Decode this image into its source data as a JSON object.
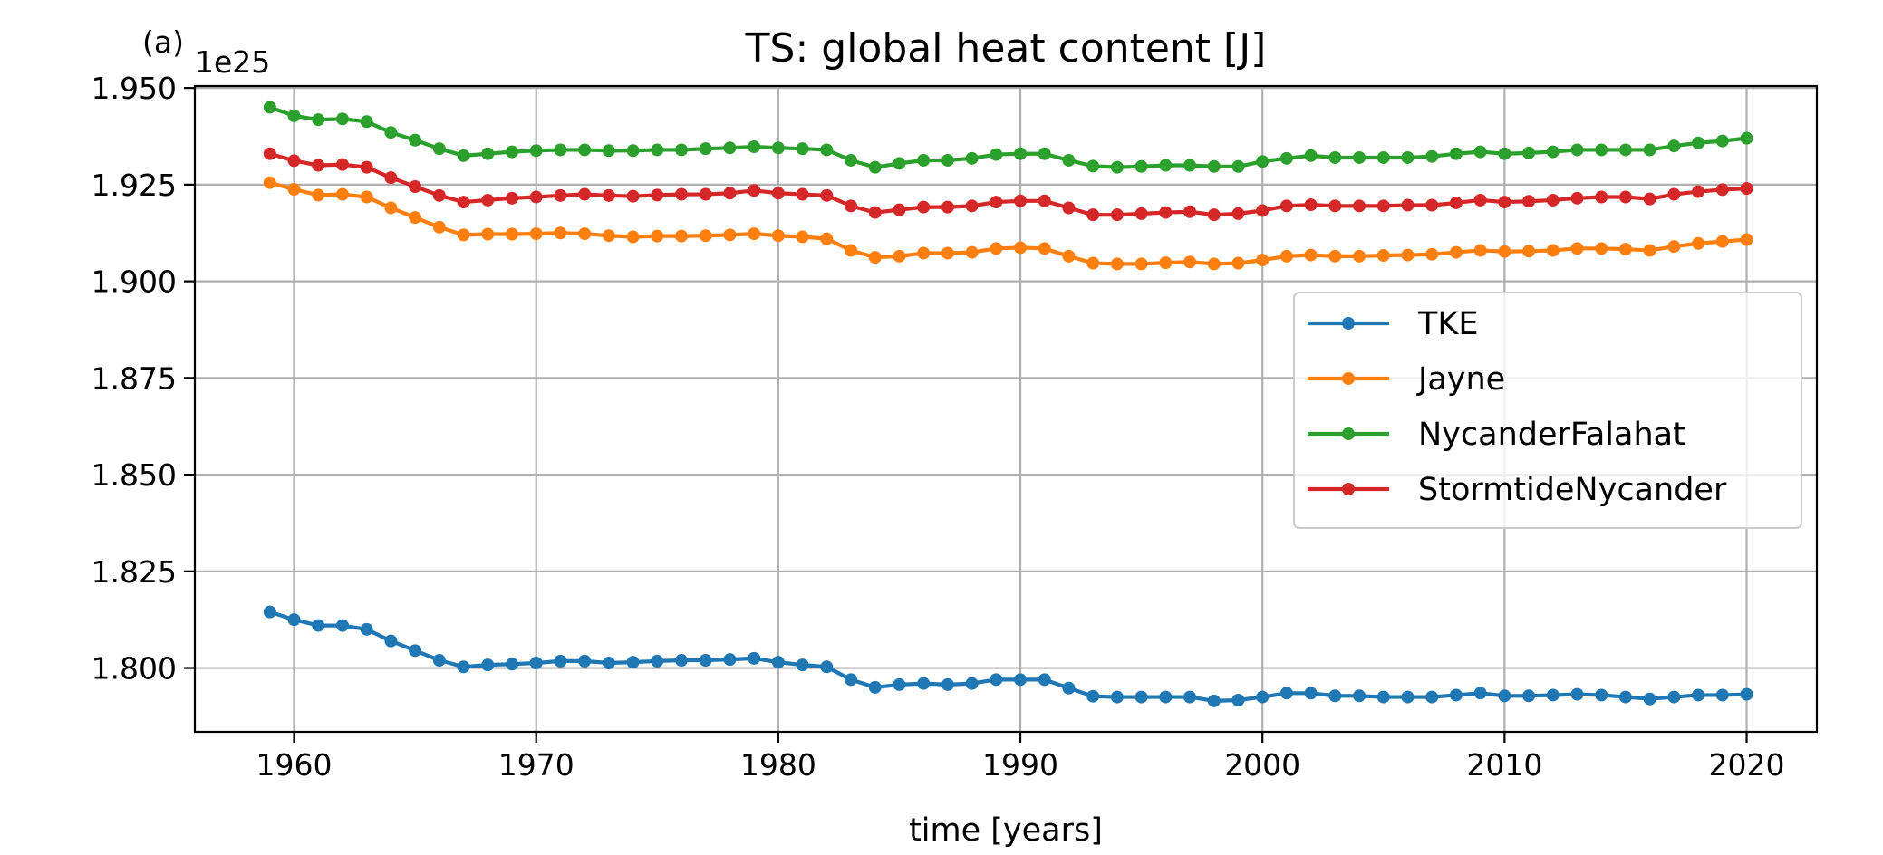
{
  "panel_label": "(a)",
  "chart_data": {
    "type": "line",
    "title": "TS: global heat content [J]",
    "xlabel": "time [years]",
    "ylabel": "",
    "offset_text": "1e25",
    "y_scale_factor": 1e+25,
    "xlim": [
      1955.9,
      2022.9
    ],
    "ylim": [
      1.7835,
      1.9505
    ],
    "x_ticks": [
      1960,
      1970,
      1980,
      1990,
      2000,
      2010,
      2020
    ],
    "x_tick_labels": [
      "1960",
      "1970",
      "1980",
      "1990",
      "2000",
      "2010",
      "2020"
    ],
    "y_ticks": [
      1.8,
      1.825,
      1.85,
      1.875,
      1.9,
      1.925,
      1.95
    ],
    "y_tick_labels": [
      "1.800",
      "1.825",
      "1.850",
      "1.875",
      "1.900",
      "1.925",
      "1.950"
    ],
    "grid": true,
    "legend_position": "center-right",
    "x": [
      1959,
      1960,
      1961,
      1962,
      1963,
      1964,
      1965,
      1966,
      1967,
      1968,
      1969,
      1970,
      1971,
      1972,
      1973,
      1974,
      1975,
      1976,
      1977,
      1978,
      1979,
      1980,
      1981,
      1982,
      1983,
      1984,
      1985,
      1986,
      1987,
      1988,
      1989,
      1990,
      1991,
      1992,
      1993,
      1994,
      1995,
      1996,
      1997,
      1998,
      1999,
      2000,
      2001,
      2002,
      2003,
      2004,
      2005,
      2006,
      2007,
      2008,
      2009,
      2010,
      2011,
      2012,
      2013,
      2014,
      2015,
      2016,
      2017,
      2018,
      2019,
      2020
    ],
    "series": [
      {
        "name": "TKE",
        "color": "#1f77b4",
        "values": [
          1.8145,
          1.8125,
          1.811,
          1.811,
          1.81,
          1.807,
          1.8045,
          1.802,
          1.8003,
          1.8008,
          1.801,
          1.8013,
          1.8018,
          1.8018,
          1.8013,
          1.8015,
          1.8018,
          1.802,
          1.802,
          1.8022,
          1.8025,
          1.8015,
          1.8008,
          1.8003,
          1.797,
          1.795,
          1.7957,
          1.796,
          1.7957,
          1.796,
          1.797,
          1.797,
          1.797,
          1.7948,
          1.7927,
          1.7925,
          1.7925,
          1.7925,
          1.7925,
          1.7915,
          1.7917,
          1.7925,
          1.7935,
          1.7935,
          1.7928,
          1.7928,
          1.7925,
          1.7925,
          1.7925,
          1.793,
          1.7935,
          1.7928,
          1.7928,
          1.793,
          1.7932,
          1.793,
          1.7925,
          1.792,
          1.7925,
          1.793,
          1.793,
          1.7932
        ]
      },
      {
        "name": "Jayne",
        "color": "#ff7f0e",
        "values": [
          1.9255,
          1.9238,
          1.9223,
          1.9225,
          1.9218,
          1.919,
          1.9165,
          1.914,
          1.912,
          1.9122,
          1.9122,
          1.9123,
          1.9125,
          1.9123,
          1.9118,
          1.9115,
          1.9117,
          1.9117,
          1.9118,
          1.912,
          1.9123,
          1.9118,
          1.9115,
          1.911,
          1.908,
          1.9062,
          1.9065,
          1.9073,
          1.9073,
          1.9075,
          1.9085,
          1.9087,
          1.9085,
          1.9065,
          1.9047,
          1.9045,
          1.9045,
          1.9048,
          1.905,
          1.9045,
          1.9047,
          1.9055,
          1.9065,
          1.9068,
          1.9065,
          1.9065,
          1.9067,
          1.9068,
          1.907,
          1.9075,
          1.908,
          1.9077,
          1.9078,
          1.908,
          1.9085,
          1.9085,
          1.9083,
          1.908,
          1.909,
          1.9098,
          1.9103,
          1.9108
        ]
      },
      {
        "name": "NycanderFalahat",
        "color": "#2ca02c",
        "values": [
          1.945,
          1.9428,
          1.9418,
          1.942,
          1.9413,
          1.9385,
          1.9365,
          1.9343,
          1.9325,
          1.933,
          1.9335,
          1.9338,
          1.934,
          1.934,
          1.9338,
          1.9338,
          1.934,
          1.934,
          1.9343,
          1.9345,
          1.9348,
          1.9345,
          1.9343,
          1.934,
          1.9313,
          1.9295,
          1.9305,
          1.9313,
          1.9313,
          1.9318,
          1.9328,
          1.933,
          1.933,
          1.9313,
          1.9298,
          1.9295,
          1.9297,
          1.93,
          1.93,
          1.9297,
          1.9297,
          1.931,
          1.9318,
          1.9325,
          1.932,
          1.932,
          1.932,
          1.932,
          1.9323,
          1.933,
          1.9335,
          1.933,
          1.9332,
          1.9335,
          1.934,
          1.934,
          1.934,
          1.934,
          1.935,
          1.9358,
          1.9363,
          1.937
        ]
      },
      {
        "name": "StormtideNycander",
        "color": "#d62728",
        "values": [
          1.933,
          1.9312,
          1.93,
          1.9302,
          1.9295,
          1.9268,
          1.9245,
          1.9222,
          1.9205,
          1.921,
          1.9215,
          1.9218,
          1.9222,
          1.9225,
          1.9222,
          1.922,
          1.9223,
          1.9225,
          1.9225,
          1.9228,
          1.9235,
          1.9228,
          1.9225,
          1.9222,
          1.9195,
          1.9178,
          1.9185,
          1.9192,
          1.9192,
          1.9195,
          1.9205,
          1.9208,
          1.9208,
          1.919,
          1.9172,
          1.9172,
          1.9175,
          1.9178,
          1.918,
          1.9172,
          1.9175,
          1.9183,
          1.9195,
          1.9198,
          1.9195,
          1.9195,
          1.9195,
          1.9197,
          1.9197,
          1.9203,
          1.921,
          1.9205,
          1.9207,
          1.921,
          1.9215,
          1.9218,
          1.9218,
          1.9213,
          1.9225,
          1.9232,
          1.9237,
          1.924
        ]
      }
    ]
  }
}
